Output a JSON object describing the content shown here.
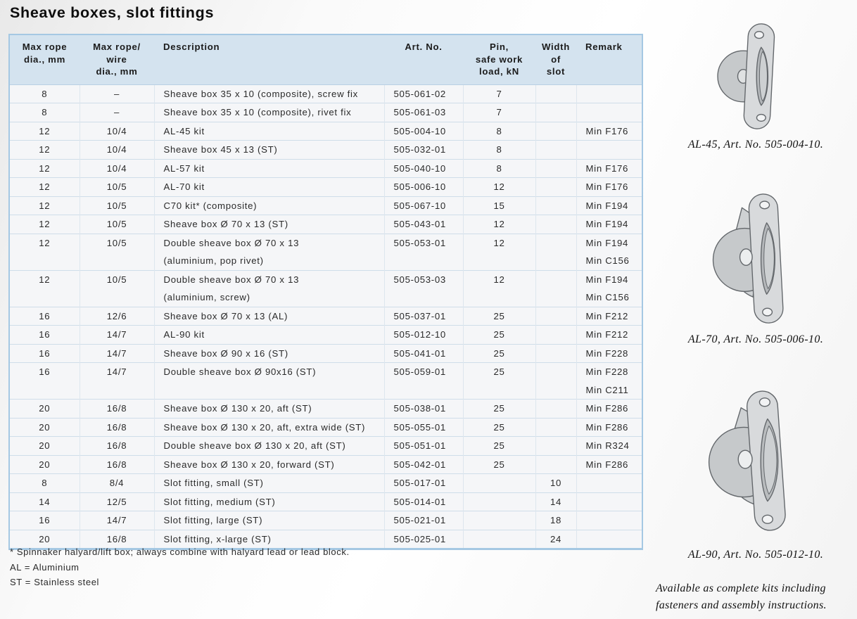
{
  "page": {
    "title": "Sheave boxes, slot fittings"
  },
  "table": {
    "headers": [
      "Max rope\ndia., mm",
      "Max rope/\nwire\ndia., mm",
      "Description",
      "Art. No.",
      "Pin,\nsafe work\nload, kN",
      "Width\nof\nslot",
      "Remark"
    ],
    "rows": [
      [
        "8",
        "–",
        "Sheave box 35 x 10 (composite), screw fix",
        "505-061-02",
        "7",
        "",
        ""
      ],
      [
        "8",
        "–",
        "Sheave box 35 x 10 (composite), rivet fix",
        "505-061-03",
        "7",
        "",
        ""
      ],
      [
        "12",
        "10/4",
        "AL-45 kit",
        "505-004-10",
        "8",
        "",
        "Min F176"
      ],
      [
        "12",
        "10/4",
        "Sheave box 45 x 13 (ST)",
        "505-032-01",
        "8",
        "",
        ""
      ],
      [
        "12",
        "10/4",
        "AL-57 kit",
        "505-040-10",
        "8",
        "",
        "Min F176"
      ],
      [
        "12",
        "10/5",
        "AL-70 kit",
        "505-006-10",
        "12",
        "",
        "Min F176"
      ],
      [
        "12",
        "10/5",
        "C70 kit* (composite)",
        "505-067-10",
        "15",
        "",
        "Min F194"
      ],
      [
        "12",
        "10/5",
        "Sheave box Ø 70 x 13 (ST)",
        "505-043-01",
        "12",
        "",
        "Min F194"
      ],
      [
        "12",
        "10/5",
        "Double sheave box Ø 70 x 13\n(aluminium, pop rivet)",
        "505-053-01",
        "12",
        "",
        "Min F194\nMin C156"
      ],
      [
        "12",
        "10/5",
        "Double sheave box Ø 70 x 13\n(aluminium, screw)",
        "505-053-03",
        "12",
        "",
        "Min F194\nMin C156"
      ],
      [
        "16",
        "12/6",
        "Sheave box Ø 70 x 13 (AL)",
        "505-037-01",
        "25",
        "",
        "Min F212"
      ],
      [
        "16",
        "14/7",
        "AL-90 kit",
        "505-012-10",
        "25",
        "",
        "Min F212"
      ],
      [
        "16",
        "14/7",
        "Sheave box Ø 90 x 16 (ST)",
        "505-041-01",
        "25",
        "",
        "Min F228"
      ],
      [
        "16",
        "14/7",
        "Double sheave box Ø 90x16 (ST)",
        "505-059-01",
        "25",
        "",
        "Min F228\nMin C211"
      ],
      [
        "20",
        "16/8",
        "Sheave box Ø 130 x 20, aft (ST)",
        "505-038-01",
        "25",
        "",
        "Min F286"
      ],
      [
        "20",
        "16/8",
        "Sheave box Ø 130 x 20, aft, extra wide (ST)",
        "505-055-01",
        "25",
        "",
        "Min F286"
      ],
      [
        "20",
        "16/8",
        "Double sheave box Ø 130 x 20, aft (ST)",
        "505-051-01",
        "25",
        "",
        "Min R324"
      ],
      [
        "20",
        "16/8",
        "Sheave box Ø 130 x 20, forward (ST)",
        "505-042-01",
        "25",
        "",
        "Min F286"
      ],
      [
        "8",
        "8/4",
        "Slot fitting, small (ST)",
        "505-017-01",
        "",
        "10",
        ""
      ],
      [
        "14",
        "12/5",
        "Slot fitting, medium (ST)",
        "505-014-01",
        "",
        "14",
        ""
      ],
      [
        "16",
        "14/7",
        "Slot fitting, large (ST)",
        "505-021-01",
        "",
        "18",
        ""
      ],
      [
        "20",
        "16/8",
        "Slot fitting, x-large (ST)",
        "505-025-01",
        "",
        "24",
        ""
      ]
    ],
    "column_alignments": [
      "center",
      "center",
      "left",
      "left",
      "center",
      "center",
      "left"
    ]
  },
  "footnotes": [
    "* Spinnaker halyard/lift box; always combine with halyard lead or lead block.",
    "AL = Aluminium",
    "ST = Stainless steel"
  ],
  "sidebar": {
    "figures": [
      {
        "name": "AL-45 sheave box illustration",
        "caption": "AL-45, Art. No. 505-004-10."
      },
      {
        "name": "AL-70 sheave box illustration",
        "caption": "AL-70, Art. No. 505-006-10."
      },
      {
        "name": "AL-90 sheave box illustration",
        "caption": "AL-90, Art. No. 505-012-10."
      }
    ],
    "note": "Available as complete kits including fasteners and assembly instructions."
  },
  "colors": {
    "header_bg": "#d4e3ef",
    "table_border": "#a5c8e3",
    "grid_line": "#cfdde9",
    "row_bg": "#f5f6f8",
    "text": "#222222"
  }
}
